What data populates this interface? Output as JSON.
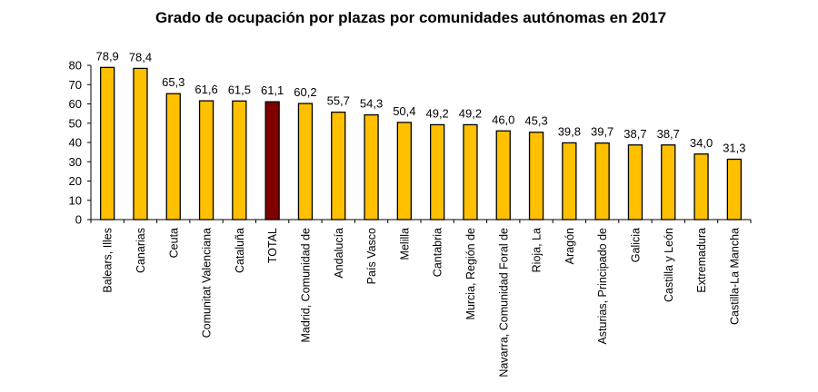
{
  "chart_data": {
    "type": "bar",
    "title": "Grado de ocupación por plazas por comunidades autónomas en 2017",
    "xlabel": "",
    "ylabel": "",
    "ylim": [
      0,
      80
    ],
    "yticks": [
      "0",
      "10",
      "20",
      "30",
      "40",
      "50",
      "60",
      "70",
      "80"
    ],
    "grid": false,
    "categories": [
      "Balears, Illes",
      "Canarias",
      "Ceuta",
      "Comunitat Valenciana",
      "Cataluña",
      "TOTAL",
      "Madrid, Comunidad de",
      "Andalucía",
      "País Vasco",
      "Melilla",
      "Cantabria",
      "Murcia, Región de",
      "Navarra, Comunidad Foral de",
      "Rioja, La",
      "Aragón",
      "Asturias, Principado de",
      "Galicia",
      "Castilla y León",
      "Extremadura",
      "Castilla-La Mancha"
    ],
    "values": [
      78.9,
      78.4,
      65.3,
      61.6,
      61.5,
      61.1,
      60.2,
      55.7,
      54.3,
      50.4,
      49.2,
      49.2,
      46.0,
      45.3,
      39.8,
      39.7,
      38.7,
      38.7,
      34.0,
      31.3
    ],
    "data_labels": [
      "78,9",
      "78,4",
      "65,3",
      "61,6",
      "61,5",
      "61,1",
      "60,2",
      "55,7",
      "54,3",
      "50,4",
      "49,2",
      "49,2",
      "46,0",
      "45,3",
      "39,8",
      "39,7",
      "38,7",
      "38,7",
      "34,0",
      "31,3"
    ],
    "colors": {
      "bar": "#FFC000",
      "highlight": "#800000",
      "highlight_category": "TOTAL",
      "outline": "#000000"
    }
  }
}
